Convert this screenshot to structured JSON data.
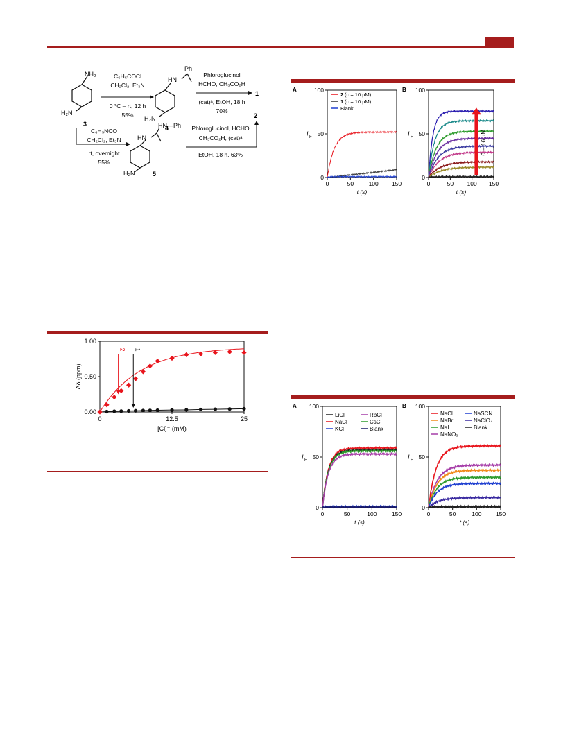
{
  "scheme": {
    "cmpd3": "3",
    "cmpd3_top": "NH₂",
    "cmpd3_bottom": "H₂N",
    "step1": [
      "C₆H₅COCl",
      "CH₂Cl₂, Et₃N",
      "0 °C – rt, 12 h",
      "55%"
    ],
    "cmpd4": "4",
    "cmpd4_nh": "HN",
    "cmpd4_ph": "Ph",
    "cmpd4_bottom": "H₂N",
    "step2": [
      "Phloroglucinol",
      "HCHO, CH₃CO₂H",
      "(cat)ᵃ, EtOH, 18 h",
      "70%"
    ],
    "product1": "1",
    "step3": [
      "C₆H₅NCO",
      "CH₂Cl₂, Et₃N",
      "rt, overnight",
      "55%"
    ],
    "cmpd5": "5",
    "cmpd5_nhph": "HN—Ph",
    "cmpd5_hn": "HN",
    "cmpd5_bottom": "H₂N",
    "step4": [
      "Phloroglucinol, HCHO",
      "CH₃CO₂H, (cat)ᵃ",
      "EtOH, 18 h, 63%"
    ],
    "product2": "2"
  },
  "nmr": {
    "colors": {
      "red": "#e8141c",
      "black": "#111111"
    },
    "chart_data": {
      "type": "scatter",
      "xlabel": "[Cl]⁻ (mM)",
      "ylabel": "Δδ (ppm)",
      "xlim": [
        0,
        25
      ],
      "ylim": [
        0,
        1.0
      ],
      "xticks": [
        "0",
        "12.5",
        "25"
      ],
      "yticks": [
        "0.00",
        "0.50",
        "1.00"
      ],
      "arrows": [
        "2",
        "1"
      ],
      "series": [
        {
          "name": "2",
          "color": "#e8141c",
          "marker": "diamond",
          "x": [
            0,
            1.2,
            2.5,
            3.7,
            5.0,
            6.2,
            7.5,
            8.7,
            10.0,
            12.5,
            15.0,
            17.5,
            20.0,
            22.5,
            25.0
          ],
          "y": [
            0.0,
            0.1,
            0.21,
            0.3,
            0.38,
            0.47,
            0.57,
            0.65,
            0.72,
            0.76,
            0.81,
            0.82,
            0.84,
            0.85,
            0.84
          ]
        },
        {
          "name": "1",
          "color": "#111111",
          "marker": "circle",
          "x": [
            0,
            1.2,
            2.5,
            3.7,
            5.0,
            6.2,
            7.5,
            8.7,
            10.0,
            12.5,
            15.0,
            17.5,
            20.0,
            22.5,
            25.0
          ],
          "y": [
            0.0,
            0.005,
            0.01,
            0.012,
            0.015,
            0.017,
            0.02,
            0.022,
            0.025,
            0.028,
            0.03,
            0.035,
            0.038,
            0.042,
            0.045
          ]
        }
      ]
    }
  },
  "fluor1": {
    "panelA": {
      "label": "A",
      "ylabel": "I",
      "ylabel_sub": "F",
      "xlabel": "t (s)",
      "xticks": [
        "0",
        "50",
        "100",
        "150"
      ],
      "yticks": [
        "0",
        "50",
        "100"
      ],
      "legend": [
        {
          "cmpd": "2",
          "rest": " (c = 10 μM)",
          "color": "#e8141c"
        },
        {
          "cmpd": "1",
          "rest": " (c = 10 μM)",
          "color": "#333333"
        },
        {
          "cmpd": "",
          "rest": "Blank",
          "color": "#1f3fd0"
        }
      ],
      "chart_data": {
        "type": "line",
        "xlim": [
          0,
          150
        ],
        "ylim": [
          0,
          100
        ],
        "series": [
          {
            "name": "2 (c = 10 μM)",
            "plateau": 52,
            "tau": 15,
            "color": "#e8141c"
          },
          {
            "name": "1 (c = 10 μM)",
            "linear_end": 9,
            "color": "#333333"
          },
          {
            "name": "Blank",
            "plateau": 1,
            "tau": 5,
            "color": "#1f3fd0"
          }
        ]
      }
    },
    "panelB": {
      "label": "B",
      "ylabel": "I",
      "ylabel_sub": "F",
      "xlabel": "t (s)",
      "xticks": [
        "0",
        "50",
        "100",
        "150"
      ],
      "yticks": [
        "0",
        "50",
        "100"
      ],
      "conc": "0 – 16 μM",
      "arrow_color": "#e8141c",
      "chart_data": {
        "type": "line",
        "xlim": [
          0,
          150
        ],
        "ylim": [
          0,
          100
        ],
        "series": [
          {
            "plateau": 76,
            "tau": 10,
            "color": "#2b1fb0"
          },
          {
            "plateau": 65,
            "tau": 14,
            "color": "#1a8a8a"
          },
          {
            "plateau": 53,
            "tau": 18,
            "color": "#2e9c2e"
          },
          {
            "plateau": 45,
            "tau": 20,
            "color": "#6a2fa0"
          },
          {
            "plateau": 36,
            "tau": 22,
            "color": "#3a3aa0"
          },
          {
            "plateau": 29,
            "tau": 24,
            "color": "#c23a8a"
          },
          {
            "plateau": 18,
            "tau": 26,
            "color": "#8a1a1a"
          },
          {
            "plateau": 12,
            "tau": 28,
            "color": "#9a8a2a"
          },
          {
            "plateau": 1,
            "tau": 5,
            "color": "#222222"
          }
        ]
      }
    }
  },
  "fluor2": {
    "panelA": {
      "label": "A",
      "ylabel": "I",
      "ylabel_sub": "F",
      "xlabel": "t (s)",
      "xticks": [
        "0",
        "50",
        "100",
        "150"
      ],
      "yticks": [
        "0",
        "50",
        "100"
      ],
      "legend": [
        {
          "name": "LiCl",
          "color": "#222222"
        },
        {
          "name": "RbCl",
          "color": "#a63da8"
        },
        {
          "name": "NaCl",
          "color": "#e8141c"
        },
        {
          "name": "CsCl",
          "color": "#2e9c2e"
        },
        {
          "name": "KCl",
          "color": "#1f3fd0"
        },
        {
          "name": "Blank",
          "color": "#1a1a6a"
        }
      ],
      "chart_data": {
        "type": "line",
        "xlim": [
          0,
          150
        ],
        "ylim": [
          0,
          100
        ],
        "series": [
          {
            "name": "NaCl",
            "plateau": 59,
            "tau": 12,
            "color": "#e8141c"
          },
          {
            "name": "LiCl",
            "plateau": 57,
            "tau": 12,
            "color": "#222222"
          },
          {
            "name": "CsCl",
            "plateau": 56,
            "tau": 12,
            "color": "#2e9c2e"
          },
          {
            "name": "RbCl",
            "plateau": 53,
            "tau": 12,
            "color": "#a63da8"
          },
          {
            "name": "KCl",
            "plateau": 1,
            "tau": 5,
            "color": "#1f3fd0"
          },
          {
            "name": "Blank",
            "plateau": 0.5,
            "tau": 5,
            "color": "#1a1a6a"
          }
        ]
      }
    },
    "panelB": {
      "label": "B",
      "ylabel": "I",
      "ylabel_sub": "F",
      "xlabel": "t (s)",
      "xticks": [
        "0",
        "50",
        "100",
        "150"
      ],
      "yticks": [
        "0",
        "50",
        "100"
      ],
      "legend": [
        {
          "name": "NaCl",
          "color": "#e8141c"
        },
        {
          "name": "NaSCN",
          "color": "#1f3fd0"
        },
        {
          "name": "NaBr",
          "color": "#f08a1a"
        },
        {
          "name": "NaClO₄",
          "color": "#3a2aa0"
        },
        {
          "name": "NaI",
          "color": "#2e9c2e"
        },
        {
          "name": "Blank",
          "color": "#222222"
        },
        {
          "name": "NaNO₃",
          "color": "#a63da8"
        }
      ],
      "chart_data": {
        "type": "line",
        "xlim": [
          0,
          150
        ],
        "ylim": [
          0,
          100
        ],
        "series": [
          {
            "name": "NaCl",
            "plateau": 61,
            "tau": 16,
            "color": "#e8141c"
          },
          {
            "name": "NaNO₃",
            "plateau": 42,
            "tau": 18,
            "color": "#a63da8"
          },
          {
            "name": "NaBr",
            "plateau": 37,
            "tau": 18,
            "color": "#f08a1a"
          },
          {
            "name": "NaI",
            "plateau": 30,
            "tau": 18,
            "color": "#2e9c2e"
          },
          {
            "name": "NaSCN",
            "plateau": 24,
            "tau": 18,
            "color": "#1f3fd0"
          },
          {
            "name": "NaClO₄",
            "plateau": 10,
            "tau": 20,
            "color": "#3a2aa0"
          },
          {
            "name": "Blank",
            "plateau": 1,
            "tau": 5,
            "color": "#222222"
          }
        ]
      }
    }
  }
}
